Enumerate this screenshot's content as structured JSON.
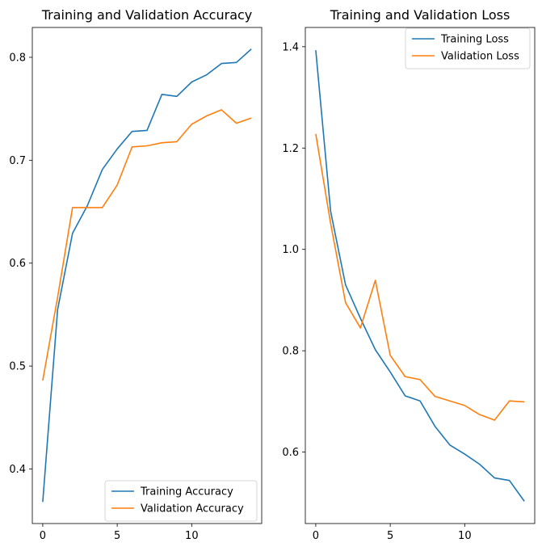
{
  "chart_data": [
    {
      "type": "line",
      "title": "Training and Validation Accuracy",
      "xlabel": "",
      "ylabel": "",
      "x": [
        0,
        1,
        2,
        3,
        4,
        5,
        6,
        7,
        8,
        9,
        10,
        11,
        12,
        13,
        14
      ],
      "xticks": [
        0,
        5,
        10
      ],
      "yticks": [
        0.4,
        0.5,
        0.6,
        0.7,
        0.8
      ],
      "xlim": [
        -0.7,
        14.7
      ],
      "ylim": [
        0.347,
        0.829
      ],
      "grid": false,
      "legend_position": "lower right",
      "series": [
        {
          "name": "Training Accuracy",
          "color": "#1f77b4",
          "values": [
            0.368,
            0.555,
            0.629,
            0.656,
            0.691,
            0.711,
            0.728,
            0.729,
            0.764,
            0.762,
            0.776,
            0.783,
            0.794,
            0.795,
            0.808
          ]
        },
        {
          "name": "Validation Accuracy",
          "color": "#ff7f0e",
          "values": [
            0.486,
            0.567,
            0.654,
            0.654,
            0.654,
            0.676,
            0.713,
            0.714,
            0.717,
            0.718,
            0.735,
            0.743,
            0.749,
            0.736,
            0.741
          ]
        }
      ]
    },
    {
      "type": "line",
      "title": "Training and Validation Loss",
      "xlabel": "",
      "ylabel": "",
      "x": [
        0,
        1,
        2,
        3,
        4,
        5,
        6,
        7,
        8,
        9,
        10,
        11,
        12,
        13,
        14
      ],
      "xticks": [
        0,
        5,
        10
      ],
      "yticks": [
        0.6,
        0.8,
        1.0,
        1.2,
        1.4
      ],
      "xlim": [
        -0.7,
        14.7
      ],
      "ylim": [
        0.459,
        1.438
      ],
      "grid": false,
      "legend_position": "upper right",
      "series": [
        {
          "name": "Training Loss",
          "color": "#1f77b4",
          "values": [
            1.393,
            1.075,
            0.93,
            0.864,
            0.802,
            0.758,
            0.711,
            0.701,
            0.651,
            0.614,
            0.596,
            0.576,
            0.549,
            0.544,
            0.503
          ]
        },
        {
          "name": "Validation Loss",
          "color": "#ff7f0e",
          "values": [
            1.228,
            1.051,
            0.895,
            0.845,
            0.939,
            0.791,
            0.749,
            0.743,
            0.71,
            0.701,
            0.692,
            0.674,
            0.663,
            0.701,
            0.699
          ]
        }
      ]
    }
  ]
}
